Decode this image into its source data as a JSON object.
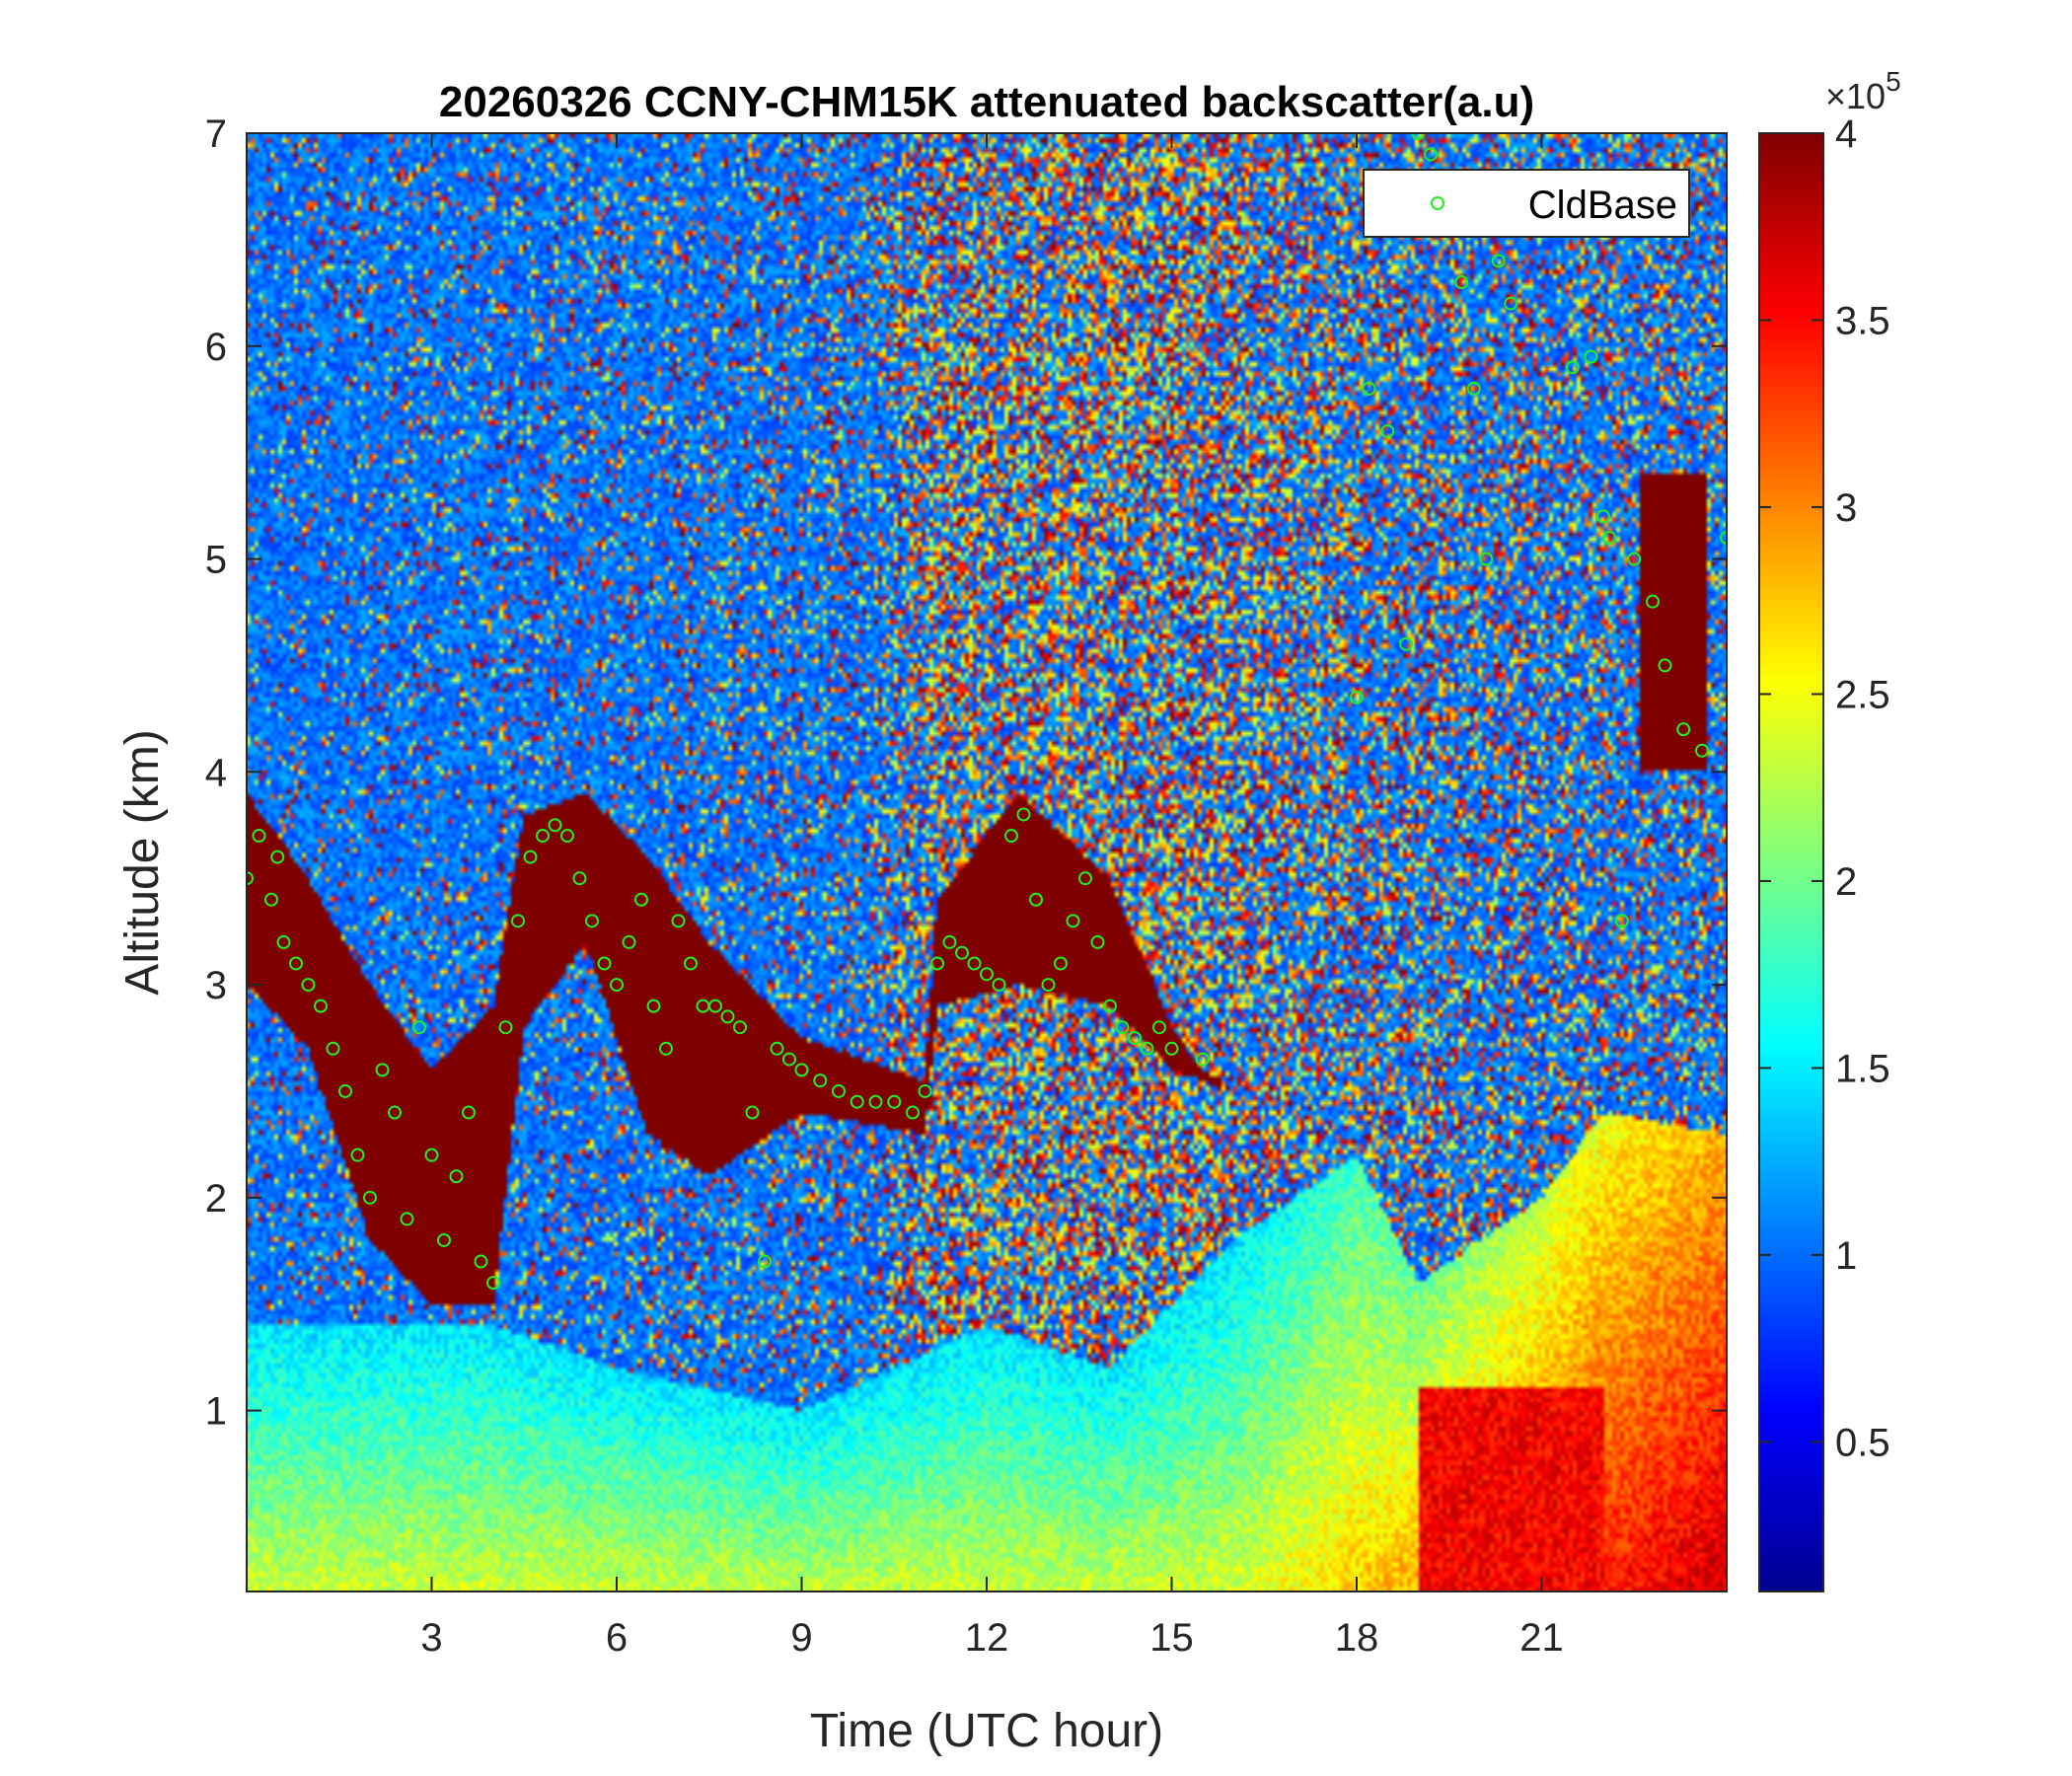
{
  "chart_data": {
    "type": "heatmap",
    "title": "20260326 CCNY-CHM15K attenuated backscatter(a.u)",
    "xlabel": "Time (UTC hour)",
    "ylabel": "Altitude (km)",
    "xlim": [
      0,
      24
    ],
    "ylim": [
      0.15,
      7
    ],
    "xticks": [
      3,
      6,
      9,
      12,
      15,
      18,
      21
    ],
    "yticks": [
      1,
      2,
      3,
      4,
      5,
      6,
      7
    ],
    "legend": {
      "position": "top-right",
      "entries": [
        "CldBase"
      ]
    },
    "colorbar": {
      "clim": [
        0.1,
        4
      ],
      "ticks": [
        0.5,
        1,
        1.5,
        2,
        2.5,
        3,
        3.5,
        4
      ],
      "tick_labels": [
        "0.5",
        "1",
        "1.5",
        "2",
        "2.5",
        "3",
        "3.5",
        "4"
      ],
      "multiplier_base": "×10",
      "multiplier_exp": "5",
      "colormap": "jet"
    },
    "colors": {
      "cloud_base_marker": "#22ee22"
    },
    "series": [
      {
        "name": "CldBase",
        "marker": "circle",
        "x": [
          0.0,
          0.2,
          0.4,
          0.5,
          0.6,
          0.8,
          1.0,
          1.2,
          1.4,
          1.6,
          1.8,
          2.0,
          2.2,
          2.4,
          2.6,
          2.8,
          3.0,
          3.2,
          3.4,
          3.6,
          3.8,
          4.0,
          4.2,
          4.4,
          4.6,
          4.8,
          5.0,
          5.2,
          5.4,
          5.6,
          5.8,
          6.0,
          6.2,
          6.4,
          6.6,
          6.8,
          7.0,
          7.2,
          7.4,
          7.6,
          7.8,
          8.0,
          8.2,
          8.4,
          8.6,
          8.8,
          9.0,
          9.3,
          9.6,
          9.9,
          10.2,
          10.5,
          10.8,
          11.0,
          11.2,
          11.4,
          11.6,
          11.8,
          12.0,
          12.2,
          12.4,
          12.6,
          12.8,
          13.0,
          13.2,
          13.4,
          13.6,
          13.8,
          14.0,
          14.2,
          14.4,
          14.6,
          14.8,
          15.0,
          15.5,
          18.0,
          18.2,
          18.5,
          18.8,
          19.0,
          19.2,
          19.5,
          19.7,
          19.9,
          20.1,
          20.3,
          20.5,
          21.5,
          21.8,
          22.0,
          22.1,
          22.3,
          22.5,
          22.8,
          23.0,
          23.3,
          23.6,
          24.0
        ],
        "y": [
          3.5,
          3.7,
          3.4,
          3.6,
          3.2,
          3.1,
          3.0,
          2.9,
          2.7,
          2.5,
          2.2,
          2.0,
          2.6,
          2.4,
          1.9,
          2.8,
          2.2,
          1.8,
          2.1,
          2.4,
          1.7,
          1.6,
          2.8,
          3.3,
          3.6,
          3.7,
          3.75,
          3.7,
          3.5,
          3.3,
          3.1,
          3.0,
          3.2,
          3.4,
          2.9,
          2.7,
          3.3,
          3.1,
          2.9,
          2.9,
          2.85,
          2.8,
          2.4,
          1.7,
          2.7,
          2.65,
          2.6,
          2.55,
          2.5,
          2.45,
          2.45,
          2.45,
          2.4,
          2.5,
          3.1,
          3.2,
          3.15,
          3.1,
          3.05,
          3.0,
          3.7,
          3.8,
          3.4,
          3.0,
          3.1,
          3.3,
          3.5,
          3.2,
          2.9,
          2.8,
          2.75,
          2.7,
          2.8,
          2.7,
          2.65,
          4.35,
          5.8,
          5.6,
          4.6,
          7.0,
          6.9,
          6.6,
          6.3,
          5.8,
          5.0,
          6.4,
          6.2,
          5.9,
          5.95,
          5.2,
          5.1,
          3.3,
          5.0,
          4.8,
          4.5,
          4.2,
          4.1,
          5.1
        ]
      }
    ]
  }
}
